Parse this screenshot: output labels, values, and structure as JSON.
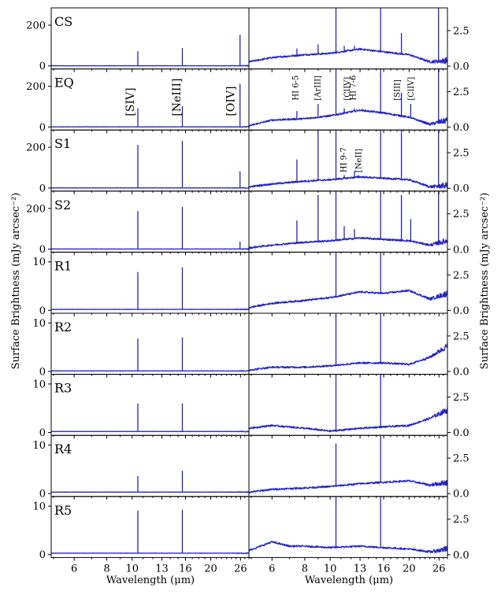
{
  "chart_data": {
    "type": "line",
    "xscale": "log",
    "xlim": [
      4.9,
      28.0
    ],
    "xticks": [
      6,
      8,
      10,
      13,
      16,
      20,
      26
    ],
    "xlabel_left": "Wavelength (μm)",
    "xlabel_right": "Wavelength (μm)",
    "ylabel_left": "Surface Brightness (mJy arcsec⁻²)",
    "ylabel_right": "Surface Brightness (mJy arcsec⁻²)",
    "series_color": "#2424c8",
    "panels": [
      {
        "label": "CS",
        "left_ylim": [
          -15,
          285
        ],
        "left_yticks": [
          0,
          200
        ],
        "right_ylim": [
          -0.2,
          4.1
        ],
        "right_yticks": [
          0.0,
          2.5
        ],
        "left_continuum": 0.5,
        "left_lines": [
          {
            "x": 10.51,
            "y": 70
          },
          {
            "x": 15.56,
            "y": 85
          },
          {
            "x": 25.89,
            "y": 150
          }
        ],
        "right_continuum": [
          {
            "x": 4.9,
            "y": 0.3
          },
          {
            "x": 6.0,
            "y": 0.6
          },
          {
            "x": 8.0,
            "y": 0.8
          },
          {
            "x": 10.0,
            "y": 0.9
          },
          {
            "x": 13.0,
            "y": 1.2
          },
          {
            "x": 16.0,
            "y": 1.0
          },
          {
            "x": 20.0,
            "y": 0.8
          },
          {
            "x": 24.0,
            "y": 0.3
          },
          {
            "x": 28.0,
            "y": 0.4
          }
        ],
        "right_lines": [
          {
            "x": 7.46,
            "y": 1.2
          },
          {
            "x": 8.99,
            "y": 1.5
          },
          {
            "x": 10.51,
            "y": 4.1
          },
          {
            "x": 11.31,
            "y": 1.4
          },
          {
            "x": 12.37,
            "y": 1.4
          },
          {
            "x": 15.56,
            "y": 4.1
          },
          {
            "x": 18.71,
            "y": 2.3
          },
          {
            "x": 25.89,
            "y": 4.1
          }
        ]
      },
      {
        "label": "EQ",
        "left_ylim": [
          -15,
          285
        ],
        "left_yticks": [
          0,
          200
        ],
        "right_ylim": [
          -0.2,
          4.1
        ],
        "right_yticks": [
          0.0,
          2.5
        ],
        "left_continuum": 0.5,
        "left_lines": [
          {
            "x": 10.51,
            "y": 90
          },
          {
            "x": 15.56,
            "y": 100
          },
          {
            "x": 25.89,
            "y": 210
          }
        ],
        "right_continuum": [
          {
            "x": 4.9,
            "y": 0.1
          },
          {
            "x": 6.0,
            "y": 0.5
          },
          {
            "x": 8.0,
            "y": 0.6
          },
          {
            "x": 10.0,
            "y": 0.8
          },
          {
            "x": 13.0,
            "y": 1.2
          },
          {
            "x": 16.0,
            "y": 1.0
          },
          {
            "x": 20.0,
            "y": 0.7
          },
          {
            "x": 24.0,
            "y": 0.2
          },
          {
            "x": 28.0,
            "y": 0.5
          }
        ],
        "right_lines": [
          {
            "x": 7.46,
            "y": 1.1
          },
          {
            "x": 8.99,
            "y": 1.6
          },
          {
            "x": 10.51,
            "y": 4.1
          },
          {
            "x": 11.31,
            "y": 1.3
          },
          {
            "x": 12.37,
            "y": 1.3
          },
          {
            "x": 15.56,
            "y": 4.1
          },
          {
            "x": 18.71,
            "y": 2.4
          },
          {
            "x": 20.31,
            "y": 1.6
          },
          {
            "x": 25.89,
            "y": 4.1
          }
        ],
        "line_labels_left": [
          {
            "text": "[SIV]",
            "x": 9.8
          },
          {
            "text": "[NeIII]",
            "x": 14.8
          },
          {
            "text": "[OIV]",
            "x": 23.8
          }
        ],
        "line_labels_right": [
          {
            "text": "HI 6-5",
            "x": 7.35
          },
          {
            "text": "[ArIII]",
            "x": 8.9
          },
          {
            "text": "[ClIV]",
            "x": 11.55
          },
          {
            "text": "HI 7-6",
            "x": 12.15
          },
          {
            "text": "[SIII]",
            "x": 17.9
          },
          {
            "text": "[ClIV]",
            "x": 20.2
          }
        ]
      },
      {
        "label": "S1",
        "left_ylim": [
          -15,
          285
        ],
        "left_yticks": [
          0,
          200
        ],
        "right_ylim": [
          -0.2,
          4.1
        ],
        "right_yticks": [
          0.0,
          2.5
        ],
        "left_continuum": 0.5,
        "left_lines": [
          {
            "x": 10.51,
            "y": 210
          },
          {
            "x": 15.56,
            "y": 230
          },
          {
            "x": 25.89,
            "y": 80
          }
        ],
        "right_continuum": [
          {
            "x": 4.9,
            "y": 0.1
          },
          {
            "x": 6.0,
            "y": 0.3
          },
          {
            "x": 8.0,
            "y": 0.5
          },
          {
            "x": 10.0,
            "y": 0.6
          },
          {
            "x": 13.0,
            "y": 0.8
          },
          {
            "x": 16.0,
            "y": 0.7
          },
          {
            "x": 20.0,
            "y": 0.6
          },
          {
            "x": 24.0,
            "y": 0.1
          },
          {
            "x": 28.0,
            "y": 0.2
          }
        ],
        "right_lines": [
          {
            "x": 7.46,
            "y": 2.0
          },
          {
            "x": 8.99,
            "y": 4.1
          },
          {
            "x": 10.51,
            "y": 4.1
          },
          {
            "x": 11.31,
            "y": 0.9
          },
          {
            "x": 12.37,
            "y": 1.2
          },
          {
            "x": 12.81,
            "y": 0.9
          },
          {
            "x": 15.56,
            "y": 4.1
          },
          {
            "x": 18.71,
            "y": 4.1
          },
          {
            "x": 25.89,
            "y": 4.1
          }
        ],
        "line_labels_right": [
          {
            "text": "HI 9-7",
            "x": 11.2
          },
          {
            "text": "[NeII]",
            "x": 12.75
          }
        ]
      },
      {
        "label": "S2",
        "left_ylim": [
          -15,
          285
        ],
        "left_yticks": [
          0,
          200
        ],
        "right_ylim": [
          -0.2,
          4.1
        ],
        "right_yticks": [
          0.0,
          2.5
        ],
        "left_continuum": 0.5,
        "left_lines": [
          {
            "x": 10.51,
            "y": 185
          },
          {
            "x": 15.56,
            "y": 205
          },
          {
            "x": 25.89,
            "y": 35
          }
        ],
        "right_continuum": [
          {
            "x": 4.9,
            "y": 0.1
          },
          {
            "x": 6.0,
            "y": 0.3
          },
          {
            "x": 8.0,
            "y": 0.5
          },
          {
            "x": 10.0,
            "y": 0.6
          },
          {
            "x": 13.0,
            "y": 0.8
          },
          {
            "x": 16.0,
            "y": 0.7
          },
          {
            "x": 20.0,
            "y": 0.6
          },
          {
            "x": 24.0,
            "y": 0.3
          },
          {
            "x": 28.0,
            "y": 0.6
          }
        ],
        "right_lines": [
          {
            "x": 7.46,
            "y": 2.0
          },
          {
            "x": 8.99,
            "y": 3.8
          },
          {
            "x": 10.51,
            "y": 4.1
          },
          {
            "x": 11.31,
            "y": 1.6
          },
          {
            "x": 12.37,
            "y": 1.4
          },
          {
            "x": 15.56,
            "y": 4.1
          },
          {
            "x": 18.71,
            "y": 3.8
          },
          {
            "x": 20.31,
            "y": 2.1
          },
          {
            "x": 25.89,
            "y": 4.1
          }
        ]
      },
      {
        "label": "R1",
        "left_ylim": [
          -0.6,
          12
        ],
        "left_yticks": [
          0,
          10
        ],
        "right_ylim": [
          -0.2,
          4.1
        ],
        "right_yticks": [
          0.0,
          2.5
        ],
        "left_continuum": 0.2,
        "left_lines": [
          {
            "x": 10.51,
            "y": 7.8
          },
          {
            "x": 15.56,
            "y": 8.8
          }
        ],
        "right_continuum": [
          {
            "x": 4.9,
            "y": 0.2
          },
          {
            "x": 6.0,
            "y": 0.5
          },
          {
            "x": 8.0,
            "y": 0.7
          },
          {
            "x": 10.0,
            "y": 0.9
          },
          {
            "x": 13.0,
            "y": 1.3
          },
          {
            "x": 16.0,
            "y": 1.2
          },
          {
            "x": 20.0,
            "y": 1.4
          },
          {
            "x": 24.0,
            "y": 0.8
          },
          {
            "x": 28.0,
            "y": 1.2
          }
        ],
        "right_lines": [
          {
            "x": 10.51,
            "y": 4.1
          },
          {
            "x": 15.56,
            "y": 4.1
          }
        ]
      },
      {
        "label": "R2",
        "left_ylim": [
          -0.6,
          12
        ],
        "left_yticks": [
          0,
          10
        ],
        "right_ylim": [
          -0.2,
          4.1
        ],
        "right_yticks": [
          0.0,
          2.5
        ],
        "left_continuum": 0.1,
        "left_lines": [
          {
            "x": 10.51,
            "y": 6.7
          },
          {
            "x": 15.56,
            "y": 6.9
          }
        ],
        "right_continuum": [
          {
            "x": 4.9,
            "y": 0.1
          },
          {
            "x": 6.0,
            "y": 0.3
          },
          {
            "x": 8.0,
            "y": 0.3
          },
          {
            "x": 10.0,
            "y": 0.4
          },
          {
            "x": 13.0,
            "y": 0.6
          },
          {
            "x": 16.0,
            "y": 0.6
          },
          {
            "x": 20.0,
            "y": 0.5
          },
          {
            "x": 24.0,
            "y": 1.0
          },
          {
            "x": 28.0,
            "y": 1.8
          }
        ],
        "right_lines": [
          {
            "x": 10.51,
            "y": 4.1
          },
          {
            "x": 15.56,
            "y": 4.1
          }
        ]
      },
      {
        "label": "R3",
        "left_ylim": [
          -0.6,
          12
        ],
        "left_yticks": [
          0,
          10
        ],
        "right_ylim": [
          -0.2,
          4.1
        ],
        "right_yticks": [
          0.0,
          2.5
        ],
        "left_continuum": 0.2,
        "left_lines": [
          {
            "x": 10.51,
            "y": 5.9
          },
          {
            "x": 15.56,
            "y": 5.9
          }
        ],
        "right_continuum": [
          {
            "x": 4.9,
            "y": 0.3
          },
          {
            "x": 6.0,
            "y": 0.5
          },
          {
            "x": 8.0,
            "y": 0.3
          },
          {
            "x": 10.0,
            "y": 0.1
          },
          {
            "x": 13.0,
            "y": 0.3
          },
          {
            "x": 16.0,
            "y": 0.4
          },
          {
            "x": 20.0,
            "y": 0.5
          },
          {
            "x": 24.0,
            "y": 1.0
          },
          {
            "x": 28.0,
            "y": 1.6
          }
        ],
        "right_lines": [
          {
            "x": 10.51,
            "y": 4.1
          },
          {
            "x": 15.56,
            "y": 4.1
          }
        ]
      },
      {
        "label": "R4",
        "left_ylim": [
          -0.6,
          12
        ],
        "left_yticks": [
          0,
          10
        ],
        "right_ylim": [
          -0.2,
          4.1
        ],
        "right_yticks": [
          0.0,
          2.5
        ],
        "left_continuum": 0.3,
        "left_lines": [
          {
            "x": 10.51,
            "y": 3.5
          },
          {
            "x": 15.56,
            "y": 4.6
          }
        ],
        "right_continuum": [
          {
            "x": 4.9,
            "y": 0.1
          },
          {
            "x": 6.0,
            "y": 0.3
          },
          {
            "x": 8.0,
            "y": 0.4
          },
          {
            "x": 10.0,
            "y": 0.5
          },
          {
            "x": 13.0,
            "y": 0.7
          },
          {
            "x": 16.0,
            "y": 0.8
          },
          {
            "x": 20.0,
            "y": 0.9
          },
          {
            "x": 24.0,
            "y": 0.6
          },
          {
            "x": 28.0,
            "y": 0.8
          }
        ],
        "right_lines": [
          {
            "x": 10.51,
            "y": 3.5
          },
          {
            "x": 15.56,
            "y": 4.1
          }
        ]
      },
      {
        "label": "R5",
        "left_ylim": [
          -0.6,
          12
        ],
        "left_yticks": [
          0,
          10
        ],
        "right_ylim": [
          -0.2,
          4.1
        ],
        "right_yticks": [
          0.0,
          2.5
        ],
        "left_continuum": 0.3,
        "left_lines": [
          {
            "x": 10.51,
            "y": 9.0
          },
          {
            "x": 15.56,
            "y": 9.2
          }
        ],
        "right_continuum": [
          {
            "x": 4.9,
            "y": 0.3
          },
          {
            "x": 6.0,
            "y": 0.9
          },
          {
            "x": 7.0,
            "y": 0.6
          },
          {
            "x": 8.0,
            "y": 0.6
          },
          {
            "x": 10.0,
            "y": 0.5
          },
          {
            "x": 13.0,
            "y": 0.6
          },
          {
            "x": 16.0,
            "y": 0.5
          },
          {
            "x": 20.0,
            "y": 0.4
          },
          {
            "x": 24.0,
            "y": 0.2
          },
          {
            "x": 28.0,
            "y": 0.4
          }
        ],
        "right_lines": [
          {
            "x": 10.51,
            "y": 4.1
          },
          {
            "x": 15.56,
            "y": 4.1
          }
        ]
      }
    ]
  }
}
